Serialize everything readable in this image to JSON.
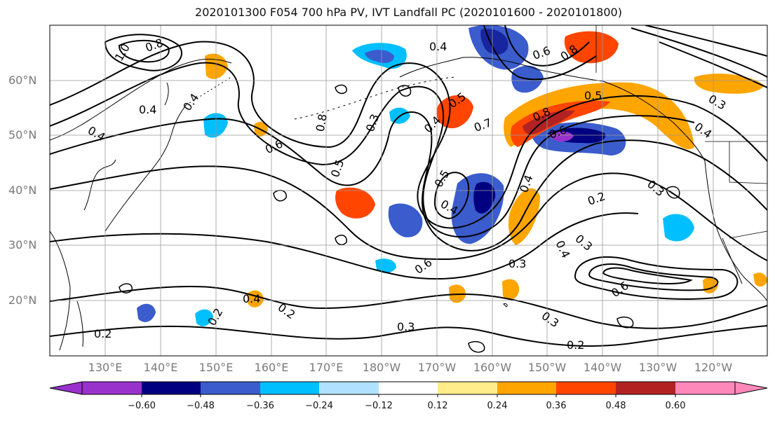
{
  "title": "2020101300 F054 700 hPa PV, IVT Landfall PC (2020101600 - 2020101800)",
  "lat_labels": [
    "60°N",
    "50°N",
    "40°N",
    "30°N",
    "20°N"
  ],
  "lon_labels": [
    "130°E",
    "140°E",
    "150°E",
    "160°E",
    "170°E",
    "180°W",
    "170°W",
    "160°W",
    "150°W",
    "140°W",
    "130°W",
    "120°W"
  ],
  "colorbar": {
    "colors": [
      "#9932cc",
      "#000080",
      "#3a5ccc",
      "#00bfff",
      "#b0e2ff",
      "#ffffff",
      "#ffec8b",
      "#ffa500",
      "#ff4500",
      "#b22222",
      "#ff88bb"
    ],
    "tick_labels": [
      "−0.60",
      "−0.48",
      "−0.36",
      "−0.24",
      "−0.12",
      "0.12",
      "0.24",
      "0.36",
      "0.48",
      "0.60"
    ]
  },
  "contour_labels": [
    "1.0",
    "0.8",
    "0.4",
    "0.4",
    "0.4",
    "0.8",
    "0.6",
    "0.5",
    "0.3",
    "0.5",
    "0.4",
    "0.4",
    "0.7",
    "0.5",
    "0.4",
    "0.6",
    "0.8",
    "0.6",
    "0.5",
    "0.4",
    "0.3",
    "0.6",
    "0.8",
    "0.4",
    "0.2",
    "0.3",
    "0.3",
    "0.4",
    "0.3",
    "0.2",
    "0.4",
    "0.2",
    "0.3",
    "0.2",
    "0.6",
    "0.3",
    "0.2"
  ]
}
